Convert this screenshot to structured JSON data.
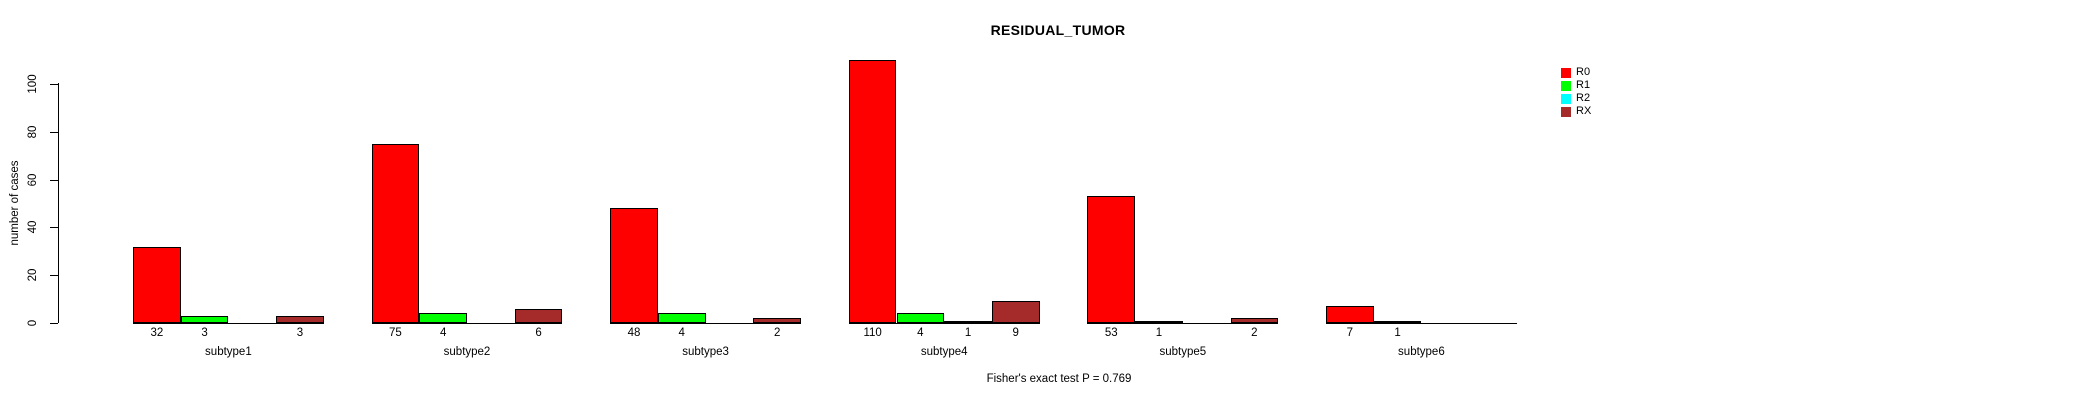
{
  "chart_data": {
    "type": "bar",
    "title": "RESIDUAL_TUMOR",
    "ylabel": "number of cases",
    "annotation": "Fisher's exact test P = 0.769",
    "categories": [
      "subtype1",
      "subtype2",
      "subtype3",
      "subtype4",
      "subtype5",
      "subtype6"
    ],
    "series": [
      {
        "name": "R0",
        "color": "#ff0000",
        "values": [
          32,
          75,
          48,
          110,
          53,
          7
        ]
      },
      {
        "name": "R1",
        "color": "#00ff00",
        "values": [
          3,
          4,
          4,
          4,
          1,
          1
        ]
      },
      {
        "name": "R2",
        "color": "#00ffff",
        "values": [
          null,
          null,
          null,
          1,
          null,
          null
        ]
      },
      {
        "name": "RX",
        "color": "#a52a2a",
        "values": [
          3,
          6,
          2,
          9,
          2,
          null
        ]
      }
    ],
    "yticks": [
      0,
      20,
      40,
      60,
      80,
      100
    ],
    "ylim": [
      0,
      100
    ],
    "grid": false,
    "legend_position": "right",
    "bar_value_labels": true,
    "background_color": "#ffffff",
    "axis_color": "#000000"
  }
}
